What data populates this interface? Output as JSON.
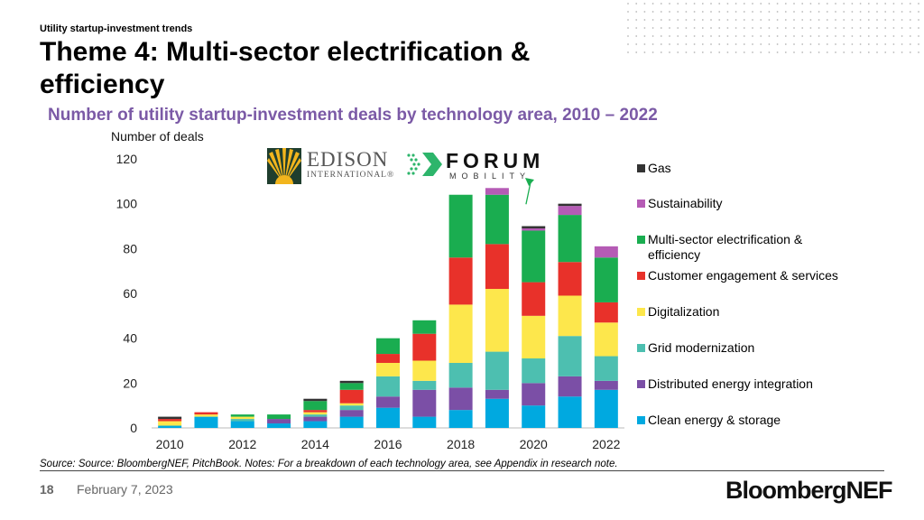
{
  "header": {
    "kicker": "Utility startup-investment trends",
    "title": "Theme 4: Multi-sector electrification & efficiency",
    "subtitle": "Number of utility startup-investment deals by technology area, 2010 – 2022"
  },
  "logos": {
    "edison_name": "EDISON",
    "edison_sub": "INTERNATIONAL®",
    "forum_name": "FORUM",
    "forum_sub": "MOBILITY"
  },
  "chart_data": {
    "type": "bar",
    "stacked": true,
    "ylabel": "Number of deals",
    "xlabel": "",
    "ylim": [
      0,
      120
    ],
    "yticks": [
      0,
      20,
      40,
      60,
      80,
      100,
      120
    ],
    "grid": false,
    "legend_position": "right",
    "categories": [
      "2010",
      "2011",
      "2012",
      "2013",
      "2014",
      "2015",
      "2016",
      "2017",
      "2018",
      "2019",
      "2020",
      "2021",
      "2022"
    ],
    "x_tick_labels": [
      "2010",
      "2012",
      "2014",
      "2016",
      "2018",
      "2020",
      "2022"
    ],
    "series": [
      {
        "name": "Clean energy & storage",
        "color": "#00a9e0",
        "values": [
          1,
          5,
          3,
          2,
          3,
          5,
          9,
          5,
          8,
          13,
          10,
          14,
          17
        ]
      },
      {
        "name": "Distributed energy integration",
        "color": "#7b4fa6",
        "values": [
          0,
          0,
          0,
          2,
          2,
          3,
          5,
          12,
          10,
          4,
          10,
          9,
          4
        ]
      },
      {
        "name": "Grid modernization",
        "color": "#4dbfb0",
        "values": [
          0,
          0,
          1,
          0,
          1,
          2,
          9,
          4,
          11,
          17,
          11,
          18,
          11
        ]
      },
      {
        "name": "Digitalization",
        "color": "#fde74c",
        "values": [
          2,
          1,
          1,
          0,
          1,
          1,
          6,
          9,
          26,
          28,
          19,
          18,
          15
        ]
      },
      {
        "name": "Customer engagement & services",
        "color": "#e8312a",
        "values": [
          1,
          1,
          0,
          0,
          1,
          6,
          4,
          12,
          21,
          20,
          15,
          15,
          9
        ]
      },
      {
        "name": "Multi-sector electrification & efficiency",
        "color": "#1aad50",
        "values": [
          0,
          0,
          1,
          2,
          4,
          3,
          7,
          6,
          28,
          22,
          23,
          21,
          20
        ]
      },
      {
        "name": "Sustainability",
        "color": "#b55bb5",
        "values": [
          0,
          0,
          0,
          0,
          0,
          0,
          0,
          0,
          0,
          3,
          1,
          4,
          5
        ]
      },
      {
        "name": "Gas",
        "color": "#333333",
        "values": [
          1,
          0,
          0,
          0,
          1,
          1,
          0,
          0,
          0,
          0,
          1,
          1,
          0
        ]
      }
    ],
    "annotation": "arrow from 2019 bar to Forum Mobility logo"
  },
  "legend_order": [
    "Gas",
    "Sustainability",
    "Multi-sector electrification & efficiency",
    "Customer engagement & services",
    "Digitalization",
    "Grid modernization",
    "Distributed energy integration",
    "Clean energy & storage"
  ],
  "legend_labels": {
    "gas": "Gas",
    "sustainability": "Sustainability",
    "multisector": "Multi-sector electrification & efficiency",
    "customer": "Customer engagement & services",
    "digitalization": "Digitalization",
    "grid": "Grid modernization",
    "distributed": "Distributed energy integration",
    "clean": "Clean energy & storage"
  },
  "footer": {
    "source": "Source: Source: BloombergNEF, PitchBook. Notes: For a breakdown of each technology area, see Appendix in research note.",
    "page_number": "18",
    "date": "February 7, 2023",
    "brand": "BloombergNEF"
  },
  "colors": {
    "accent": "#7b5aa6",
    "arrow": "#1aad50"
  }
}
